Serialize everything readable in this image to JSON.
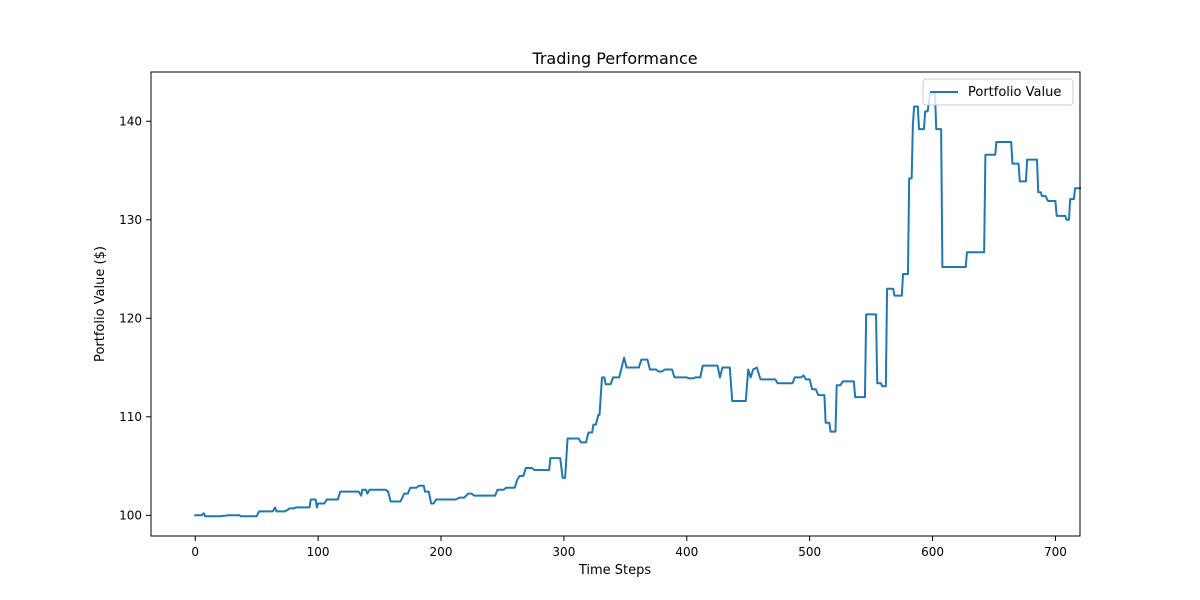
{
  "chart_data": {
    "type": "line",
    "title": "Trading Performance",
    "xlabel": "Time Steps",
    "ylabel": "Portfolio Value ($)",
    "xlim": [
      -36,
      720
    ],
    "ylim": [
      97.9,
      145
    ],
    "x_ticks": [
      0,
      100,
      200,
      300,
      400,
      500,
      600,
      700
    ],
    "y_ticks": [
      100,
      110,
      120,
      130,
      140
    ],
    "x_tick_labels": [
      "0",
      "100",
      "200",
      "300",
      "400",
      "500",
      "600",
      "700"
    ],
    "y_tick_labels": [
      "100",
      "110",
      "120",
      "130",
      "140"
    ],
    "grid": false,
    "legend_position": "top-right",
    "colors": {
      "series": "#1f77b4",
      "axes": "#000000",
      "background": "#ffffff"
    },
    "series": [
      {
        "name": "Portfolio Value",
        "points": [
          [
            0,
            100.0
          ],
          [
            5,
            100.0
          ],
          [
            7,
            100.2
          ],
          [
            8,
            99.9
          ],
          [
            20,
            99.9
          ],
          [
            27,
            100.0
          ],
          [
            36,
            100.0
          ],
          [
            37,
            99.9
          ],
          [
            50,
            99.9
          ],
          [
            52,
            100.4
          ],
          [
            63,
            100.4
          ],
          [
            65,
            100.8
          ],
          [
            66,
            100.4
          ],
          [
            73,
            100.4
          ],
          [
            77,
            100.7
          ],
          [
            80,
            100.7
          ],
          [
            82,
            100.8
          ],
          [
            93,
            100.8
          ],
          [
            94,
            101.6
          ],
          [
            98,
            101.6
          ],
          [
            99,
            100.8
          ],
          [
            100,
            101.2
          ],
          [
            105,
            101.2
          ],
          [
            107,
            101.6
          ],
          [
            116,
            101.6
          ],
          [
            118,
            102.4
          ],
          [
            133,
            102.4
          ],
          [
            135,
            102.0
          ],
          [
            136,
            102.6
          ],
          [
            139,
            102.6
          ],
          [
            140,
            102.2
          ],
          [
            142,
            102.6
          ],
          [
            155,
            102.6
          ],
          [
            157,
            102.4
          ],
          [
            159,
            101.4
          ],
          [
            167,
            101.4
          ],
          [
            170,
            102.2
          ],
          [
            173,
            102.2
          ],
          [
            175,
            102.8
          ],
          [
            180,
            102.8
          ],
          [
            182,
            103.0
          ],
          [
            186,
            103.0
          ],
          [
            187,
            102.4
          ],
          [
            190,
            102.4
          ],
          [
            192,
            101.2
          ],
          [
            194,
            101.2
          ],
          [
            196,
            101.6
          ],
          [
            212,
            101.6
          ],
          [
            215,
            101.8
          ],
          [
            219,
            101.8
          ],
          [
            222,
            102.2
          ],
          [
            225,
            102.2
          ],
          [
            227,
            102.0
          ],
          [
            244,
            102.0
          ],
          [
            246,
            102.6
          ],
          [
            251,
            102.6
          ],
          [
            253,
            102.8
          ],
          [
            260,
            102.8
          ],
          [
            262,
            103.6
          ],
          [
            264,
            104.0
          ],
          [
            267,
            104.0
          ],
          [
            269,
            104.8
          ],
          [
            274,
            104.8
          ],
          [
            276,
            104.6
          ],
          [
            288,
            104.6
          ],
          [
            289,
            105.8
          ],
          [
            297,
            105.8
          ],
          [
            299,
            103.8
          ],
          [
            301,
            103.8
          ],
          [
            303,
            107.8
          ],
          [
            312,
            107.8
          ],
          [
            314,
            107.4
          ],
          [
            318,
            107.4
          ],
          [
            320,
            108.4
          ],
          [
            323,
            108.4
          ],
          [
            324,
            109.2
          ],
          [
            326,
            109.2
          ],
          [
            328,
            110.2
          ],
          [
            329,
            110.2
          ],
          [
            331,
            114.0
          ],
          [
            333,
            114.0
          ],
          [
            334,
            113.3
          ],
          [
            338,
            113.3
          ],
          [
            340,
            114.0
          ],
          [
            345,
            114.0
          ],
          [
            347,
            115.0
          ],
          [
            349,
            116.0
          ],
          [
            351,
            115.0
          ],
          [
            361,
            115.0
          ],
          [
            363,
            115.8
          ],
          [
            368,
            115.8
          ],
          [
            370,
            114.8
          ],
          [
            375,
            114.8
          ],
          [
            377,
            114.6
          ],
          [
            380,
            114.6
          ],
          [
            382,
            114.8
          ],
          [
            388,
            114.8
          ],
          [
            390,
            114.0
          ],
          [
            400,
            114.0
          ],
          [
            402,
            113.9
          ],
          [
            405,
            113.9
          ],
          [
            407,
            114.0
          ],
          [
            411,
            114.0
          ],
          [
            413,
            115.2
          ],
          [
            425,
            115.2
          ],
          [
            427,
            114.0
          ],
          [
            429,
            115.0
          ],
          [
            435,
            115.0
          ],
          [
            437,
            111.6
          ],
          [
            448,
            111.6
          ],
          [
            450,
            114.8
          ],
          [
            452,
            114.0
          ],
          [
            454,
            114.8
          ],
          [
            457,
            115.0
          ],
          [
            460,
            113.8
          ],
          [
            472,
            113.8
          ],
          [
            474,
            113.4
          ],
          [
            486,
            113.4
          ],
          [
            488,
            114.0
          ],
          [
            493,
            114.0
          ],
          [
            495,
            114.2
          ],
          [
            497,
            113.8
          ],
          [
            500,
            113.8
          ],
          [
            502,
            112.8
          ],
          [
            505,
            112.8
          ],
          [
            507,
            112.2
          ],
          [
            512,
            112.2
          ],
          [
            513,
            109.4
          ],
          [
            516,
            109.4
          ],
          [
            517,
            108.5
          ],
          [
            521,
            108.5
          ],
          [
            522,
            113.2
          ],
          [
            525,
            113.2
          ],
          [
            527,
            113.6
          ],
          [
            536,
            113.6
          ],
          [
            537,
            112.0
          ],
          [
            545,
            112.0
          ],
          [
            546,
            120.4
          ],
          [
            554,
            120.4
          ],
          [
            555,
            113.4
          ],
          [
            558,
            113.4
          ],
          [
            559,
            113.1
          ],
          [
            562,
            113.1
          ],
          [
            563,
            123.0
          ],
          [
            568,
            123.0
          ],
          [
            569,
            122.3
          ],
          [
            575,
            122.3
          ],
          [
            576,
            124.5
          ],
          [
            580,
            124.5
          ],
          [
            581,
            134.2
          ],
          [
            583,
            134.2
          ],
          [
            584,
            139.6
          ],
          [
            585,
            141.5
          ],
          [
            588,
            141.5
          ],
          [
            589,
            139.2
          ],
          [
            593,
            139.2
          ],
          [
            594,
            141.0
          ],
          [
            596,
            141.0
          ],
          [
            598,
            142.8
          ],
          [
            602,
            142.8
          ],
          [
            603,
            139.2
          ],
          [
            607,
            139.2
          ],
          [
            608,
            125.2
          ],
          [
            627,
            125.2
          ],
          [
            628,
            126.7
          ],
          [
            642,
            126.7
          ],
          [
            643,
            136.6
          ],
          [
            651,
            136.6
          ],
          [
            652,
            137.9
          ],
          [
            664,
            137.9
          ],
          [
            665,
            135.7
          ],
          [
            670,
            135.7
          ],
          [
            671,
            133.9
          ],
          [
            676,
            133.9
          ],
          [
            677,
            136.1
          ],
          [
            685,
            136.1
          ],
          [
            686,
            132.8
          ],
          [
            688,
            132.8
          ],
          [
            689,
            132.4
          ],
          [
            692,
            132.4
          ],
          [
            694,
            131.9
          ],
          [
            700,
            131.9
          ],
          [
            701,
            130.4
          ],
          [
            708,
            130.4
          ],
          [
            709,
            130.0
          ],
          [
            711,
            130.0
          ],
          [
            712,
            132.1
          ],
          [
            715,
            132.1
          ],
          [
            716,
            133.2
          ],
          [
            720,
            133.2
          ]
        ]
      }
    ]
  }
}
